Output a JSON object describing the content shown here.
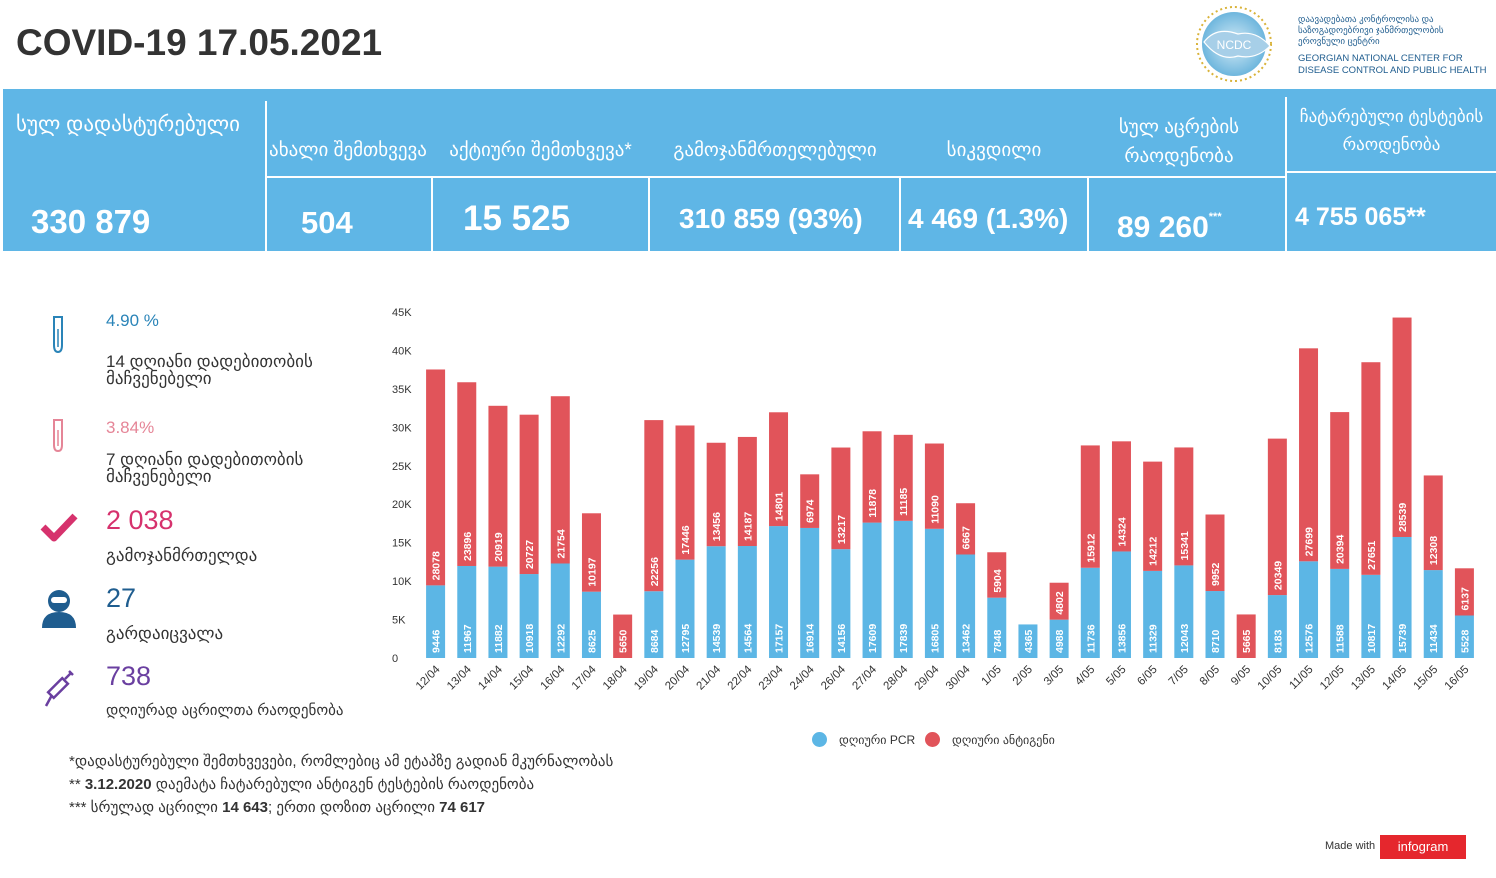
{
  "header": {
    "title": "COVID-19 17.05.2021"
  },
  "logo": {
    "badge": "NCDC",
    "georgian": "დაავადებათა კონტროლისა და საზოგადოებრივი ჯანმრთელობის ეროვნული ცენტრი",
    "english": "GEORGIAN NATIONAL CENTER FOR DISEASE CONTROL AND PUBLIC HEALTH"
  },
  "summary": {
    "total_label": "სულ დადასტურებული",
    "total_value": "330 879",
    "new_label": "ახალი შემთხვევა",
    "new_value": "504",
    "active_label": "აქტიური შემთხვევა*",
    "active_value": "15 525",
    "recovered_label": "გამოჯანმრთელებული",
    "recovered_value": "310 859 (93%)",
    "deaths_label": "სიკვდილი",
    "deaths_value": "4 469 (1.3%)",
    "vaccinations_label": "სულ აცრების რაოდენობა",
    "vaccinations_value": "89 260",
    "vaccinations_mark": "***",
    "tests_label": "ჩატარებული ტესტების რაოდენობა",
    "tests_value": "4 755 065**"
  },
  "stats": [
    {
      "icon": "test-tube-icon",
      "value": "4.90 %",
      "label": "14  დღიანი დადებითობის მაჩვენებელი",
      "color": "#2a84b8"
    },
    {
      "icon": "test-tube-icon",
      "value": "3.84%",
      "label": "7 დღიანი დადებითობის მაჩვენებელი",
      "color": "#e58597"
    },
    {
      "icon": "check-icon",
      "value": "2 038",
      "label": "გამოჯანმრთელდა",
      "color": "#d6326d"
    },
    {
      "icon": "person-icon",
      "value": "27",
      "label": "გარდაიცვალა",
      "color": "#1f5d8f"
    },
    {
      "icon": "syringe-icon",
      "value": "738",
      "label": "დღიურად აცრილთა რაოდენობა",
      "color": "#6a3fa0"
    }
  ],
  "footnotes": {
    "n1": "*დადასტურებული შემთხვევები, რომლებიც ამ ეტაპზე გადიან მკურნალობას",
    "n2_pre": "** ",
    "n2_date": "3.12.2020",
    "n2_rest": " დაემატა ჩატარებული ანტიგენ ტესტების რაოდენობა",
    "n3_pre": "***  სრულად აცრილი ",
    "n3_full": "14 643",
    "n3_mid": "; ერთი დოზით აცრილი ",
    "n3_one": "74 617"
  },
  "branding": {
    "made_with": "Made with",
    "infogram": "infogram"
  },
  "colors": {
    "band": "#5fb6e6",
    "pcr": "#5cb6e5",
    "antigen": "#e1545a"
  },
  "chart_data": {
    "type": "bar",
    "stacked": true,
    "categories": [
      "12/04",
      "13/04",
      "14/04",
      "15/04",
      "16/04",
      "17/04",
      "18/04",
      "19/04",
      "20/04",
      "21/04",
      "22/04",
      "23/04",
      "24/04",
      "26/04",
      "27/04",
      "28/04",
      "29/04",
      "30/04",
      "1/05",
      "2/05",
      "3/05",
      "4/05",
      "5/05",
      "6/05",
      "7/05",
      "8/05",
      "9/05",
      "10/05",
      "11/05",
      "12/05",
      "13/05",
      "14/05",
      "15/05",
      "16/05"
    ],
    "series": [
      {
        "name": "დღიური PCR",
        "color": "#5cb6e5",
        "values": [
          9446,
          11967,
          11882,
          10918,
          12292,
          8625,
          null,
          8684,
          12795,
          14539,
          14564,
          17157,
          16914,
          14156,
          17609,
          17839,
          16805,
          13462,
          7848,
          4365,
          4988,
          11736,
          13856,
          11329,
          12043,
          8710,
          null,
          8183,
          12576,
          11588,
          10817,
          15739,
          11434,
          5528
        ]
      },
      {
        "name": "დღიური ანტიგენი",
        "color": "#e1545a",
        "values": [
          28078,
          23896,
          20919,
          20727,
          21754,
          10197,
          5650,
          22256,
          17446,
          13456,
          14187,
          14801,
          6974,
          13217,
          11878,
          11185,
          11090,
          6667,
          5904,
          null,
          4802,
          15912,
          14324,
          14212,
          15341,
          9952,
          5665,
          20349,
          27699,
          20394,
          27651,
          28539,
          12308,
          6137
        ]
      }
    ],
    "yticks": [
      "0",
      "5K",
      "10K",
      "15K",
      "20K",
      "25K",
      "30K",
      "35K",
      "40K",
      "45K"
    ],
    "ylim": [
      0,
      45000
    ],
    "legend": "bottom-center",
    "grid": false
  }
}
